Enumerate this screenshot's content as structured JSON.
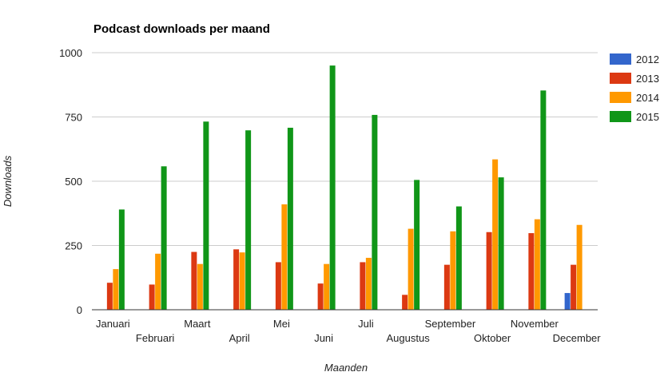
{
  "chart_data": {
    "type": "bar",
    "title": "Podcast downloads per maand",
    "xlabel": "Maanden",
    "ylabel": "Downloads",
    "ylim": [
      0,
      1000
    ],
    "yticks": [
      "0",
      "250",
      "500",
      "750",
      "1000"
    ],
    "grid": true,
    "legend_position": "right",
    "categories": [
      "Januari",
      "Februari",
      "Maart",
      "April",
      "Mei",
      "Juni",
      "Juli",
      "Augustus",
      "September",
      "Oktober",
      "November",
      "December"
    ],
    "series": [
      {
        "name": "2012",
        "color": "#3366cc",
        "values": [
          0,
          0,
          0,
          0,
          0,
          0,
          0,
          0,
          0,
          0,
          0,
          65
        ]
      },
      {
        "name": "2013",
        "color": "#dc3912",
        "values": [
          105,
          98,
          225,
          235,
          185,
          102,
          185,
          58,
          175,
          302,
          298,
          175
        ]
      },
      {
        "name": "2014",
        "color": "#ff9900",
        "values": [
          158,
          218,
          178,
          223,
          410,
          178,
          202,
          315,
          305,
          585,
          352,
          330
        ]
      },
      {
        "name": "2015",
        "color": "#109618",
        "values": [
          390,
          558,
          732,
          698,
          708,
          950,
          758,
          505,
          402,
          515,
          853,
          0
        ]
      }
    ]
  }
}
